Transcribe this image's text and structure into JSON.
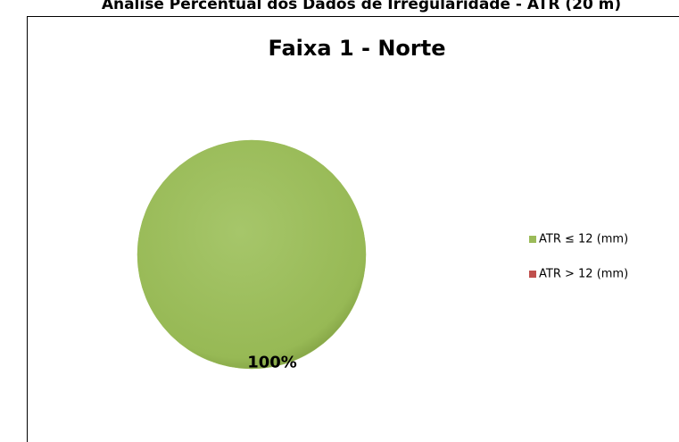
{
  "chart_data": {
    "type": "pie",
    "page_title": "Análise Percentual dos Dados de Irregularidade - ATR (20 m)",
    "title": "Faixa 1 - Norte",
    "categories": [
      "ATR ≤ 12 (mm)",
      "ATR > 12 (mm)"
    ],
    "values": [
      100,
      0
    ],
    "value_labels": [
      "100%",
      null
    ],
    "colors": [
      "#9bbb59",
      "#c0504d"
    ],
    "legend": "right"
  }
}
